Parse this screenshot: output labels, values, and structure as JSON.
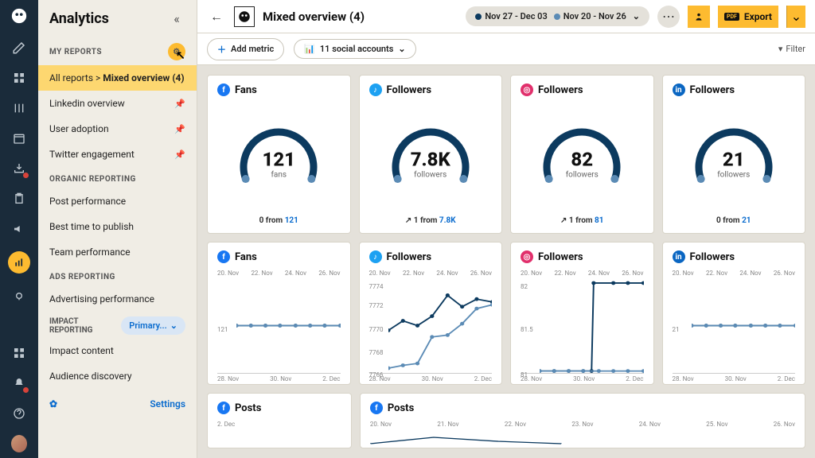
{
  "colors": {
    "rail_bg": "#1a2b3a",
    "accent": "#fdbb30",
    "sidebar_bg": "#f0ede5",
    "page_bg": "#e4e1da",
    "link": "#0b6cce",
    "facebook": "#1877f2",
    "twitter": "#1da1f2",
    "instagram": "#e1306c",
    "linkedin": "#0a66c2",
    "gauge_stroke": "#0c3a5f",
    "gauge_cap": "#5b8bb5"
  },
  "sidebar": {
    "title": "Analytics",
    "sections": {
      "my_reports": "MY REPORTS",
      "organic": "ORGANIC REPORTING",
      "ads": "ADS REPORTING",
      "impact": "IMPACT REPORTING"
    },
    "breadcrumb_all": "All reports >",
    "breadcrumb_current": "Mixed overview (4)",
    "items": {
      "linkedin": "Linkedin overview",
      "user_adopt": "User adoption",
      "twitter": "Twitter engagement",
      "post_perf": "Post performance",
      "best_time": "Best time to publish",
      "team_perf": "Team performance",
      "ads_perf": "Advertising performance",
      "impact_content": "Impact content",
      "audience": "Audience discovery"
    },
    "impact_pill": "Primary...",
    "settings": "Settings"
  },
  "header": {
    "title": "Mixed overview (4)",
    "date1": "Nov 27 - Dec 03",
    "date2": "Nov 20 - Nov 26",
    "dot1_color": "#0c3a5f",
    "dot2_color": "#5b8bb5",
    "export": "Export",
    "pdf": "PDF"
  },
  "toolbar": {
    "add_metric": "Add metric",
    "accounts": "11 social accounts",
    "filter": "Filter"
  },
  "gauges": [
    {
      "net": "facebook",
      "net_label": "f",
      "title": "Fans",
      "value": "121",
      "unit": "fans",
      "delta": "0 from ",
      "delta_link": "121",
      "arc_pct": 0.95
    },
    {
      "net": "twitter",
      "net_label": "♪",
      "title": "Followers",
      "value": "7.8K",
      "unit": "followers",
      "delta": "↗ 1 from ",
      "delta_link": "7.8K",
      "arc_pct": 0.95
    },
    {
      "net": "instagram",
      "net_label": "◎",
      "title": "Followers",
      "value": "82",
      "unit": "followers",
      "delta": "↗ 1 from ",
      "delta_link": "81",
      "arc_pct": 0.95
    },
    {
      "net": "linkedin",
      "net_label": "in",
      "title": "Followers",
      "value": "21",
      "unit": "followers",
      "delta": "0 from ",
      "delta_link": "21",
      "arc_pct": 0.95
    }
  ],
  "line_charts": [
    {
      "net": "facebook",
      "net_label": "f",
      "title": "Fans",
      "x_top": [
        "20. Nov",
        "22. Nov",
        "24. Nov",
        "26. Nov"
      ],
      "x_bot": [
        "28. Nov",
        "30. Nov",
        "2. Dec"
      ],
      "y_labels": [
        {
          "v": "121",
          "p": 50
        }
      ],
      "series": [
        {
          "color": "#0c3a5f",
          "pts": [
            [
              0,
              50
            ],
            [
              14,
              50
            ],
            [
              28,
              50
            ],
            [
              42,
              50
            ],
            [
              57,
              50
            ],
            [
              71,
              50
            ],
            [
              85,
              50
            ],
            [
              100,
              50
            ]
          ]
        },
        {
          "color": "#5b8bb5",
          "pts": [
            [
              0,
              50
            ],
            [
              14,
              50
            ],
            [
              28,
              50
            ],
            [
              42,
              50
            ],
            [
              57,
              50
            ],
            [
              71,
              50
            ],
            [
              85,
              50
            ],
            [
              100,
              50
            ]
          ]
        }
      ]
    },
    {
      "net": "twitter",
      "net_label": "♪",
      "title": "Followers",
      "x_top": [
        "20. Nov",
        "22. Nov",
        "24. Nov",
        "26. Nov"
      ],
      "x_bot": [
        "28. Nov",
        "30. Nov",
        "2. Dec"
      ],
      "y_labels": [
        {
          "v": "7774",
          "p": 5
        },
        {
          "v": "7772",
          "p": 25
        },
        {
          "v": "7770",
          "p": 50
        },
        {
          "v": "7768",
          "p": 75
        },
        {
          "v": "7766",
          "p": 98
        }
      ],
      "series": [
        {
          "color": "#0c3a5f",
          "pts": [
            [
              0,
              55
            ],
            [
              14,
              45
            ],
            [
              28,
              50
            ],
            [
              42,
              40
            ],
            [
              57,
              18
            ],
            [
              71,
              30
            ],
            [
              85,
              22
            ],
            [
              100,
              25
            ]
          ]
        },
        {
          "color": "#5b8bb5",
          "pts": [
            [
              0,
              95
            ],
            [
              14,
              92
            ],
            [
              28,
              90
            ],
            [
              42,
              62
            ],
            [
              57,
              60
            ],
            [
              71,
              48
            ],
            [
              85,
              32
            ],
            [
              100,
              28
            ]
          ]
        }
      ]
    },
    {
      "net": "instagram",
      "net_label": "◎",
      "title": "Followers",
      "x_top": [
        "20. Nov",
        "22. Nov",
        "24. Nov",
        "26. Nov"
      ],
      "x_bot": [
        "28. Nov",
        "30. Nov",
        "2. Dec"
      ],
      "y_labels": [
        {
          "v": "82",
          "p": 5
        },
        {
          "v": "81.5",
          "p": 50
        },
        {
          "v": "81",
          "p": 98
        }
      ],
      "series": [
        {
          "color": "#0c3a5f",
          "pts": [
            [
              0,
              98
            ],
            [
              14,
              98
            ],
            [
              28,
              98
            ],
            [
              42,
              98
            ],
            [
              50,
              98
            ],
            [
              52,
              5
            ],
            [
              71,
              5
            ],
            [
              85,
              5
            ],
            [
              100,
              5
            ]
          ]
        },
        {
          "color": "#5b8bb5",
          "pts": [
            [
              0,
              98
            ],
            [
              14,
              98
            ],
            [
              28,
              98
            ],
            [
              42,
              98
            ],
            [
              57,
              98
            ],
            [
              71,
              98
            ],
            [
              85,
              98
            ],
            [
              100,
              98
            ]
          ]
        }
      ]
    },
    {
      "net": "linkedin",
      "net_label": "in",
      "title": "Followers",
      "x_top": [
        "20. Nov",
        "22. Nov",
        "24. Nov",
        "26. Nov"
      ],
      "x_bot": [
        "28. Nov",
        "30. Nov",
        "2. Dec"
      ],
      "y_labels": [
        {
          "v": "21",
          "p": 50
        }
      ],
      "series": [
        {
          "color": "#0c3a5f",
          "pts": [
            [
              0,
              50
            ],
            [
              14,
              50
            ],
            [
              28,
              50
            ],
            [
              42,
              50
            ],
            [
              57,
              50
            ],
            [
              71,
              50
            ],
            [
              85,
              50
            ],
            [
              100,
              50
            ]
          ]
        },
        {
          "color": "#5b8bb5",
          "pts": [
            [
              0,
              50
            ],
            [
              14,
              50
            ],
            [
              28,
              50
            ],
            [
              42,
              50
            ],
            [
              57,
              50
            ],
            [
              71,
              50
            ],
            [
              85,
              50
            ],
            [
              100,
              50
            ]
          ]
        }
      ]
    }
  ],
  "posts": {
    "title": "Posts",
    "net": "facebook",
    "wide_x": [
      "20. Nov",
      "21. Nov",
      "22. Nov",
      "23. Nov",
      "24. Nov",
      "25. Nov",
      "26. Nov"
    ],
    "narrow_x": [
      "2. Dec"
    ]
  }
}
